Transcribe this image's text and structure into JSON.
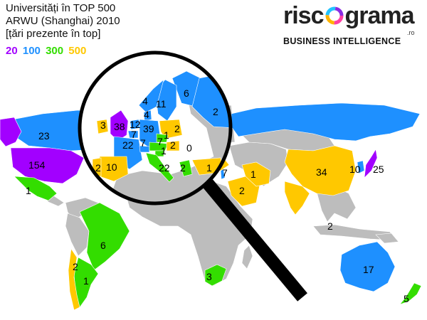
{
  "header": {
    "title": "Universități în TOP 500",
    "subtitle": "ARWU (Shanghai) 2010",
    "note": "[țări prezente în top]"
  },
  "legend": [
    {
      "label": "20",
      "color": "#a200ff"
    },
    {
      "label": "100",
      "color": "#1e90ff"
    },
    {
      "label": "300",
      "color": "#33dd00"
    },
    {
      "label": "500",
      "color": "#ffc800"
    }
  ],
  "logo": {
    "word_left": "risc",
    "word_right": "grama",
    "suffix": ".ro",
    "tagline": "BUSINESS INTELLIGENCE"
  },
  "colors": {
    "none": "#bdbdbd",
    "tier20": "#a200ff",
    "tier100": "#1e90ff",
    "tier300": "#33dd00",
    "tier500": "#ffc800",
    "magnifier": "#000000"
  },
  "regions": [
    {
      "name": "SUA",
      "value": "154"
    },
    {
      "name": "Canada",
      "value": "23"
    },
    {
      "name": "Mexic",
      "value": "1"
    },
    {
      "name": "Brazilia",
      "value": "6"
    },
    {
      "name": "Argentina",
      "value": "1"
    },
    {
      "name": "Chile",
      "value": "2"
    },
    {
      "name": "Africa de Sud",
      "value": "3"
    },
    {
      "name": "Australia",
      "value": "17"
    },
    {
      "name": "Noua Zeelandă",
      "value": "5"
    },
    {
      "name": "China",
      "value": "34"
    },
    {
      "name": "Coreea de Sud",
      "value": "10"
    },
    {
      "name": "Japonia",
      "value": "25"
    },
    {
      "name": "Singapore",
      "value": "2"
    },
    {
      "name": "Israel",
      "value": "7"
    },
    {
      "name": "Iran",
      "value": "1"
    },
    {
      "name": "Arabia Saudită",
      "value": "2"
    },
    {
      "name": "Rusia",
      "value": "2"
    },
    {
      "name": "Finlanda",
      "value": "6"
    },
    {
      "name": "Suedia",
      "value": "11"
    },
    {
      "name": "Norvegia",
      "value": "4"
    },
    {
      "name": "Danemarca",
      "value": "4"
    },
    {
      "name": "Irlanda",
      "value": "3"
    },
    {
      "name": "Marea Britanie",
      "value": "38"
    },
    {
      "name": "Olanda",
      "value": "12"
    },
    {
      "name": "Belgia",
      "value": "7"
    },
    {
      "name": "Germania",
      "value": "39"
    },
    {
      "name": "Polonia",
      "value": "2"
    },
    {
      "name": "Franța",
      "value": "22"
    },
    {
      "name": "Elveția",
      "value": "7"
    },
    {
      "name": "Cehia",
      "value": "1"
    },
    {
      "name": "Austria",
      "value": "7"
    },
    {
      "name": "Slovenia",
      "value": "1"
    },
    {
      "name": "Ungaria",
      "value": "2"
    },
    {
      "name": "România",
      "value": "0"
    },
    {
      "name": "Italia",
      "value": "22"
    },
    {
      "name": "Spania",
      "value": "10"
    },
    {
      "name": "Portugalia",
      "value": "2"
    },
    {
      "name": "Grecia",
      "value": "2"
    },
    {
      "name": "Turcia",
      "value": "1"
    }
  ]
}
